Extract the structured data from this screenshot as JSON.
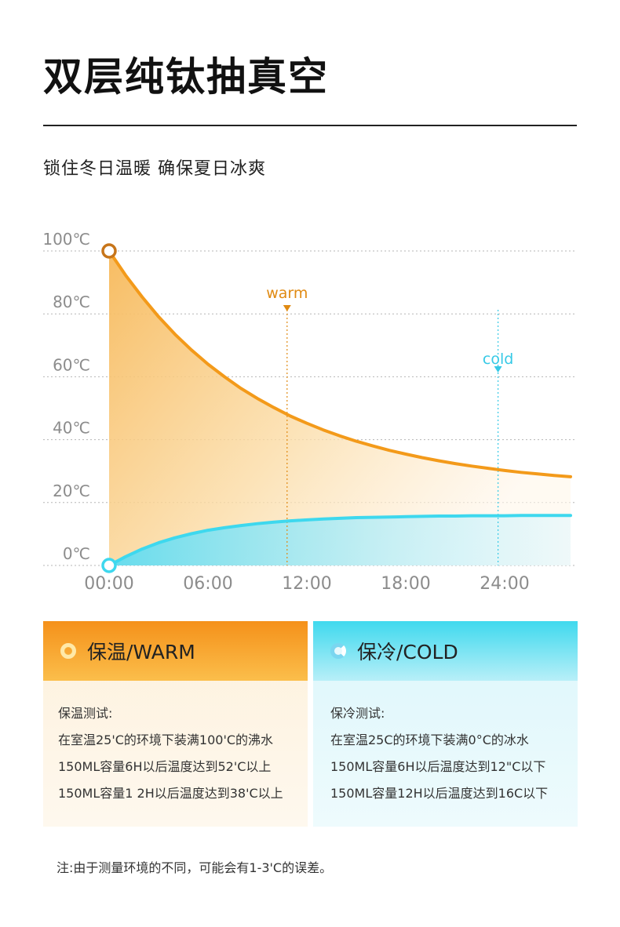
{
  "header": {
    "title": "双层纯钛抽真空",
    "subtitle": "锁住冬日温暖 确保夏日冰爽"
  },
  "chart_data": {
    "type": "line",
    "y_ticks": [
      "100℃",
      "80℃",
      "60℃",
      "40℃",
      "20℃",
      "0℃"
    ],
    "x_ticks": [
      "00:00",
      "06:00",
      "12:00",
      "18:00",
      "24:00"
    ],
    "ylim": [
      0,
      100
    ],
    "grid": true,
    "series": [
      {
        "name": "warm",
        "color": "#f39a1a",
        "x": [
          0,
          1,
          2,
          3,
          4,
          5,
          6,
          7,
          8,
          9,
          10,
          11,
          12,
          13,
          14,
          15,
          16,
          17,
          18,
          19,
          20,
          21,
          22,
          23,
          24,
          25,
          26,
          27,
          28
        ],
        "y": [
          100,
          92.3,
          85.4,
          79.1,
          73.5,
          68.5,
          64.0,
          60.0,
          56.3,
          53.1,
          50.2,
          47.5,
          45.2,
          43.1,
          41.2,
          39.5,
          38.0,
          36.6,
          35.4,
          34.3,
          33.3,
          32.4,
          31.6,
          30.9,
          30.2,
          29.6,
          29.1,
          28.6,
          28.2
        ]
      },
      {
        "name": "cold",
        "color": "#3ed8ee",
        "x": [
          0,
          1,
          2,
          3,
          4,
          5,
          6,
          7,
          8,
          9,
          10,
          11,
          12,
          13,
          14,
          15,
          16,
          17,
          18,
          19,
          20,
          21,
          22,
          23,
          24,
          25,
          26,
          27,
          28
        ],
        "y": [
          0,
          2.8,
          5.2,
          7.2,
          8.8,
          10.1,
          11.2,
          12.0,
          12.7,
          13.3,
          13.8,
          14.2,
          14.5,
          14.8,
          15.0,
          15.2,
          15.3,
          15.4,
          15.5,
          15.6,
          15.7,
          15.7,
          15.8,
          15.8,
          15.8,
          15.9,
          15.9,
          15.9,
          15.9
        ]
      }
    ],
    "annotations": [
      {
        "label": "warm",
        "x": 10.8,
        "color": "#e08a12"
      },
      {
        "label": "cold",
        "x": 23.6,
        "color": "#36c9e6"
      }
    ]
  },
  "cards": {
    "warm": {
      "title": "保温/WARM",
      "lines": [
        "保温测试:",
        "在室温25'C的环境下装满100'C的沸水",
        "150ML容量6H以后温度达到52'C以上",
        "150ML容量1 2H以后温度达到38'C以上"
      ]
    },
    "cold": {
      "title": "保冷/COLD",
      "lines": [
        "保冷测试:",
        "在室温25C的环境下装满0°C的冰水",
        "150ML容量6H以后温度达到12\"C以下",
        "150ML容量12H以后温度达到16C以下"
      ]
    }
  },
  "note": "注:由于测量环境的不同，可能会有1-3'C的误差。"
}
